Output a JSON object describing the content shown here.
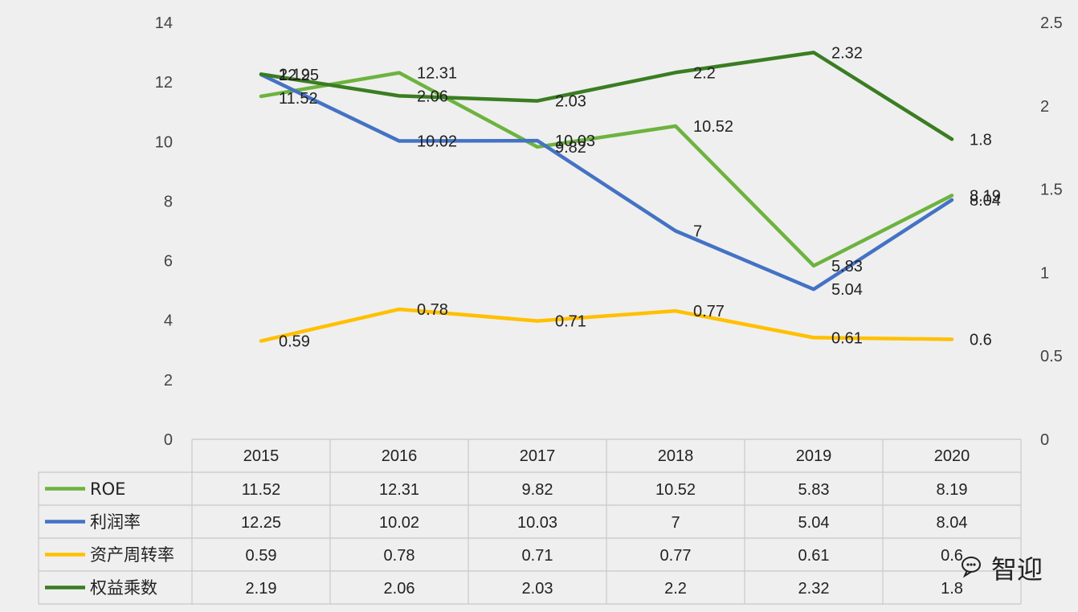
{
  "chart_data": {
    "type": "line",
    "categories": [
      "2015",
      "2016",
      "2017",
      "2018",
      "2019",
      "2020"
    ],
    "y_left": {
      "range": [
        0,
        14
      ],
      "ticks": [
        "0",
        "2",
        "4",
        "6",
        "8",
        "10",
        "12",
        "14"
      ]
    },
    "y_right": {
      "range": [
        0,
        2.5
      ],
      "ticks": [
        "0",
        "0.5",
        "1",
        "1.5",
        "2",
        "2.5"
      ]
    },
    "grid": false,
    "data_table": true,
    "series": [
      {
        "name": "ROE",
        "axis": "left",
        "color": "#6db33f",
        "values": [
          11.52,
          12.31,
          9.82,
          10.52,
          5.83,
          8.19
        ],
        "labels": [
          "11.52",
          "12.31",
          "9.82",
          "10.52",
          "5.83",
          "8.19"
        ]
      },
      {
        "name": "利润率",
        "axis": "left",
        "color": "#4472c4",
        "values": [
          12.25,
          10.02,
          10.03,
          7,
          5.04,
          8.04
        ],
        "labels": [
          "12.25",
          "10.02",
          "10.03",
          "7",
          "5.04",
          "8.04"
        ]
      },
      {
        "name": "资产周转率",
        "axis": "right",
        "color": "#ffc000",
        "values": [
          0.59,
          0.78,
          0.71,
          0.77,
          0.61,
          0.6
        ],
        "labels": [
          "0.59",
          "0.78",
          "0.71",
          "0.77",
          "0.61",
          "0.6"
        ]
      },
      {
        "name": "权益乘数",
        "axis": "right",
        "color": "#3a7d22",
        "values": [
          2.19,
          2.06,
          2.03,
          2.2,
          2.32,
          1.8
        ],
        "labels": [
          "2.19",
          "2.06",
          "2.03",
          "2.2",
          "2.32",
          "1.8"
        ]
      }
    ]
  },
  "watermark": {
    "icon": "chat-bubble-icon",
    "text": "智迎"
  }
}
